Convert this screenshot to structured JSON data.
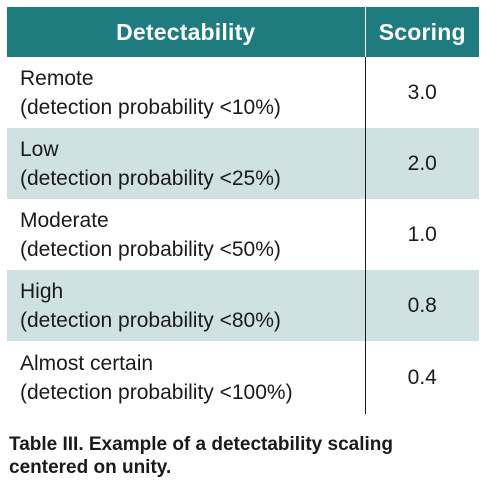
{
  "table": {
    "headers": [
      "Detectability",
      "Scoring"
    ],
    "rows": [
      {
        "level": "Remote",
        "detail": "(detection probability <10%)",
        "score": "3.0"
      },
      {
        "level": "Low",
        "detail": "(detection probability <25%)",
        "score": "2.0"
      },
      {
        "level": "Moderate",
        "detail": "(detection probability <50%)",
        "score": "1.0"
      },
      {
        "level": "High",
        "detail": "(detection probability <80%)",
        "score": "0.8"
      },
      {
        "level": "Almost certain",
        "detail": "(detection probability <100%)",
        "score": "0.4"
      }
    ]
  },
  "caption": {
    "line1": "Table III. Example of a detectability scaling",
    "line2": "centered on unity."
  },
  "colors": {
    "header_bg": "#1e7b7e",
    "shaded_row_bg": "#cfe1e1"
  }
}
